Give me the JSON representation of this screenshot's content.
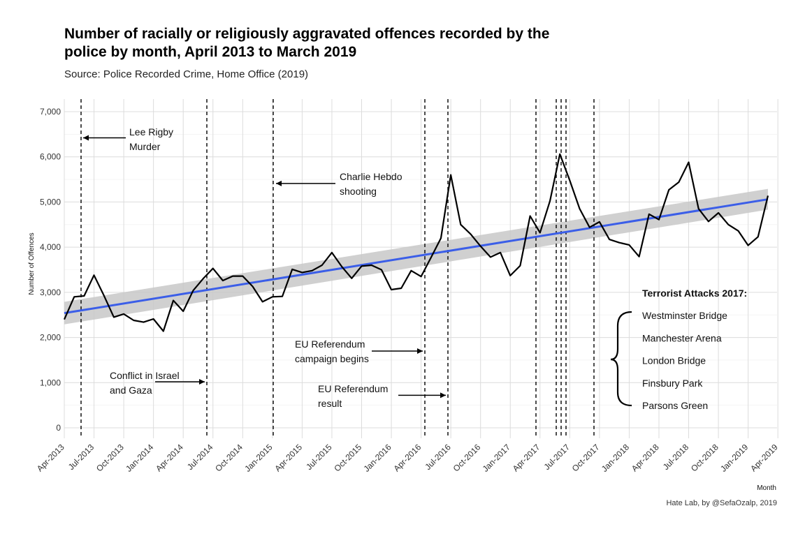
{
  "header": {
    "title": "Number of racially or religiously aggravated offences recorded by the police by month, April 2013 to March 2019",
    "subtitle": "Source: Police Recorded Crime, Home Office (2019)",
    "caption": "Hate Lab, by @SefaOzalp, 2019"
  },
  "chart_data": {
    "type": "line",
    "xlabel": "Month",
    "ylabel": "Number of Offences",
    "ylim": [
      0,
      7000
    ],
    "grid": true,
    "y_ticks": [
      0,
      1000,
      2000,
      3000,
      4000,
      5000,
      6000,
      7000
    ],
    "y_tick_labels": [
      "0",
      "1,000",
      "2,000",
      "3,000",
      "4,000",
      "5,000",
      "6,000",
      "7,000"
    ],
    "x_tick_labels": [
      "Apr-2013",
      "Jul-2013",
      "Oct-2013",
      "Jan-2014",
      "Apr-2014",
      "Jul-2014",
      "Oct-2014",
      "Jan-2015",
      "Apr-2015",
      "Jul-2015",
      "Oct-2015",
      "Jan-2016",
      "Apr-2016",
      "Jul-2016",
      "Oct-2016",
      "Jan-2017",
      "Apr-2017",
      "Jul-2017",
      "Oct-2017",
      "Jan-2018",
      "Apr-2018",
      "Jul-2018",
      "Oct-2018",
      "Jan-2019",
      "Apr-2019"
    ],
    "x": [
      "2013-04",
      "2013-05",
      "2013-06",
      "2013-07",
      "2013-08",
      "2013-09",
      "2013-10",
      "2013-11",
      "2013-12",
      "2014-01",
      "2014-02",
      "2014-03",
      "2014-04",
      "2014-05",
      "2014-06",
      "2014-07",
      "2014-08",
      "2014-09",
      "2014-10",
      "2014-11",
      "2014-12",
      "2015-01",
      "2015-02",
      "2015-03",
      "2015-04",
      "2015-05",
      "2015-06",
      "2015-07",
      "2015-08",
      "2015-09",
      "2015-10",
      "2015-11",
      "2015-12",
      "2016-01",
      "2016-02",
      "2016-03",
      "2016-04",
      "2016-05",
      "2016-06",
      "2016-07",
      "2016-08",
      "2016-09",
      "2016-10",
      "2016-11",
      "2016-12",
      "2017-01",
      "2017-02",
      "2017-03",
      "2017-04",
      "2017-05",
      "2017-06",
      "2017-07",
      "2017-08",
      "2017-09",
      "2017-10",
      "2017-11",
      "2017-12",
      "2018-01",
      "2018-02",
      "2018-03",
      "2018-04",
      "2018-05",
      "2018-06",
      "2018-07",
      "2018-08",
      "2018-09",
      "2018-10",
      "2018-11",
      "2018-12",
      "2019-01",
      "2019-02",
      "2019-03"
    ],
    "series": [
      {
        "values": [
          2400,
          2900,
          2920,
          3380,
          2930,
          2450,
          2520,
          2380,
          2340,
          2410,
          2140,
          2820,
          2580,
          3040,
          3300,
          3530,
          3260,
          3360,
          3360,
          3130,
          2790,
          2900,
          2910,
          3510,
          3440,
          3480,
          3600,
          3880,
          3570,
          3310,
          3580,
          3600,
          3500,
          3060,
          3090,
          3480,
          3350,
          3770,
          4200,
          5600,
          4500,
          4290,
          4020,
          3780,
          3880,
          3370,
          3590,
          4690,
          4320,
          5020,
          6060,
          5480,
          4850,
          4440,
          4560,
          4170,
          4100,
          4050,
          3790,
          4730,
          4610,
          5270,
          5440,
          5880,
          4850,
          4570,
          4760,
          4500,
          4360,
          4040,
          4230,
          5140
        ]
      }
    ],
    "trend": {
      "label": "linear fit",
      "color": "#3b5ee8",
      "start": 2540,
      "end": 5060,
      "ci_start": 250,
      "ci_end": 230
    },
    "events": [
      {
        "date": "2013-05",
        "label_lines": [
          "Lee Rigby",
          "Murder"
        ],
        "arrow_y": 6420
      },
      {
        "date": "2014-07",
        "label_lines": [
          "Conflict in Israel",
          "and Gaza"
        ],
        "arrow_y": 1020
      },
      {
        "date": "2015-01",
        "label_lines": [
          "Charlie Hebdo",
          "shooting"
        ],
        "arrow_y": 5410
      },
      {
        "date": "2016-04",
        "label_lines": [
          "EU Referendum",
          "campaign begins"
        ],
        "arrow_y": 1700
      },
      {
        "date": "2016-06",
        "label_lines": [
          "EU Referendum",
          "result"
        ],
        "arrow_y": 720
      },
      {
        "date": "2017-03"
      },
      {
        "date": "2017-05"
      },
      {
        "date": "2017-06a"
      },
      {
        "date": "2017-06b"
      },
      {
        "date": "2017-09"
      }
    ],
    "terror_box": {
      "title": "Terrorist Attacks 2017:",
      "items": [
        "Westminster Bridge",
        "Manchester Arena",
        "London Bridge",
        "Finsbury Park",
        "Parsons Green"
      ]
    },
    "colors": {
      "line": "#000000",
      "trend": "#3b5ee8",
      "ci": "#c8c8c8",
      "grid": "#dcdcdc"
    }
  }
}
